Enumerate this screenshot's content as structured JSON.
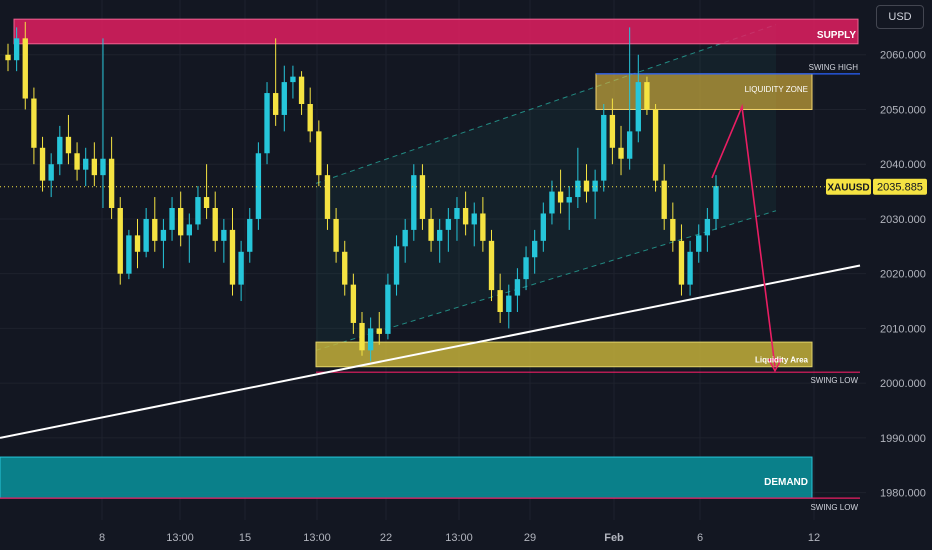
{
  "currency_button": "USD",
  "chart_data": {
    "type": "candlestick",
    "symbol": "XAUUSD",
    "last_price": 2035.885,
    "last_price_label": "2035.885",
    "ylim": [
      1975,
      2070
    ],
    "y_ticks": [
      "2060.000",
      "2050.000",
      "2040.000",
      "2030.000",
      "2020.000",
      "2010.000",
      "2000.000",
      "1990.000",
      "1980.000"
    ],
    "y_tick_values": [
      2060,
      2050,
      2040,
      2030,
      2020,
      2010,
      2000,
      1990,
      1980
    ],
    "x_ticks": [
      "8",
      "13:00",
      "15",
      "13:00",
      "22",
      "13:00",
      "29",
      "Feb",
      "6",
      "12"
    ],
    "zones": [
      {
        "label": "SUPPLY",
        "low": 2062,
        "high": 2066.5,
        "from": "start",
        "to": "axis",
        "color": "#e91e63"
      },
      {
        "label": "LIQUIDITY ZONE",
        "low": 2050,
        "high": 2056.5,
        "from": "Jan 31",
        "to": "Feb 9",
        "color": "#e2b93b"
      },
      {
        "label": "Liquidity Area",
        "low": 2003,
        "high": 2007.5,
        "from": "Jan 19",
        "to": "Feb 9",
        "color": "#c9b43a"
      },
      {
        "label": "DEMAND",
        "low": 1979,
        "high": 1986.5,
        "from": "start",
        "to": "Feb 9",
        "color": "#0a8a94"
      }
    ],
    "levels": [
      {
        "label": "SWING HIGH",
        "price": 2056.5,
        "color": "#2962ff"
      },
      {
        "label": "SWING LOW",
        "price": 2002,
        "color": "#e91e63"
      },
      {
        "label": "SWING LOW",
        "price": 1979,
        "color": "#e91e63"
      }
    ],
    "trendline": {
      "label": "",
      "from_price": 1990,
      "to_price": 2021.5,
      "color": "#ffffff"
    },
    "channel": {
      "upper_from": 2036.5,
      "upper_to": 2065.5,
      "lower_from": 2006,
      "lower_to": 2031.5
    },
    "projection": {
      "from_price": 2037.5,
      "via_price": 2050.5,
      "to_price": 2003,
      "color": "#e91e63"
    },
    "candles": [
      [
        2060,
        2062,
        2057,
        2059
      ],
      [
        2059,
        2065,
        2057,
        2063
      ],
      [
        2063,
        2066,
        2050,
        2052
      ],
      [
        2052,
        2054,
        2040,
        2043
      ],
      [
        2043,
        2045,
        2035,
        2037
      ],
      [
        2037,
        2042,
        2034,
        2040
      ],
      [
        2040,
        2047,
        2038,
        2045
      ],
      [
        2045,
        2049,
        2040,
        2042
      ],
      [
        2042,
        2044,
        2037,
        2039
      ],
      [
        2039,
        2043,
        2036,
        2041
      ],
      [
        2041,
        2044,
        2036,
        2038
      ],
      [
        2038,
        2063,
        2032,
        2041
      ],
      [
        2041,
        2045,
        2030,
        2032
      ],
      [
        2032,
        2034,
        2018,
        2020
      ],
      [
        2020,
        2028,
        2019,
        2027
      ],
      [
        2027,
        2030,
        2021,
        2024
      ],
      [
        2024,
        2032,
        2023,
        2030
      ],
      [
        2030,
        2034,
        2024,
        2026
      ],
      [
        2026,
        2030,
        2021,
        2028
      ],
      [
        2028,
        2034,
        2026,
        2032
      ],
      [
        2032,
        2035,
        2025,
        2027
      ],
      [
        2027,
        2031,
        2022,
        2029
      ],
      [
        2029,
        2036,
        2028,
        2034
      ],
      [
        2034,
        2040,
        2030,
        2032
      ],
      [
        2032,
        2035,
        2024,
        2026
      ],
      [
        2026,
        2030,
        2022,
        2028
      ],
      [
        2028,
        2032,
        2016,
        2018
      ],
      [
        2018,
        2026,
        2015,
        2024
      ],
      [
        2024,
        2032,
        2022,
        2030
      ],
      [
        2030,
        2044,
        2028,
        2042
      ],
      [
        2042,
        2055,
        2040,
        2053
      ],
      [
        2053,
        2063,
        2047,
        2049
      ],
      [
        2049,
        2058,
        2046,
        2055
      ],
      [
        2055,
        2058,
        2052,
        2056
      ],
      [
        2056,
        2057,
        2049,
        2051
      ],
      [
        2051,
        2054,
        2044,
        2046
      ],
      [
        2046,
        2048,
        2036,
        2038
      ],
      [
        2038,
        2040,
        2028,
        2030
      ],
      [
        2030,
        2032,
        2022,
        2024
      ],
      [
        2024,
        2026,
        2016,
        2018
      ],
      [
        2018,
        2020,
        2009,
        2011
      ],
      [
        2011,
        2013,
        2005,
        2006
      ],
      [
        2006,
        2012,
        2004,
        2010
      ],
      [
        2010,
        2013,
        2007,
        2009
      ],
      [
        2009,
        2020,
        2008,
        2018
      ],
      [
        2018,
        2027,
        2016,
        2025
      ],
      [
        2025,
        2030,
        2022,
        2028
      ],
      [
        2028,
        2040,
        2026,
        2038
      ],
      [
        2038,
        2040,
        2028,
        2030
      ],
      [
        2030,
        2032,
        2024,
        2026
      ],
      [
        2026,
        2030,
        2022,
        2028
      ],
      [
        2028,
        2032,
        2024,
        2030
      ],
      [
        2030,
        2034,
        2026,
        2032
      ],
      [
        2032,
        2035,
        2027,
        2029
      ],
      [
        2029,
        2033,
        2025,
        2031
      ],
      [
        2031,
        2034,
        2024,
        2026
      ],
      [
        2026,
        2028,
        2015,
        2017
      ],
      [
        2017,
        2020,
        2011,
        2013
      ],
      [
        2013,
        2018,
        2010,
        2016
      ],
      [
        2016,
        2021,
        2013,
        2019
      ],
      [
        2019,
        2025,
        2017,
        2023
      ],
      [
        2023,
        2028,
        2020,
        2026
      ],
      [
        2026,
        2033,
        2024,
        2031
      ],
      [
        2031,
        2037,
        2029,
        2035
      ],
      [
        2035,
        2039,
        2031,
        2033
      ],
      [
        2033,
        2036,
        2028,
        2034
      ],
      [
        2034,
        2043,
        2032,
        2037
      ],
      [
        2037,
        2040,
        2033,
        2035
      ],
      [
        2035,
        2039,
        2030,
        2037
      ],
      [
        2037,
        2051,
        2035,
        2049
      ],
      [
        2049,
        2052,
        2040,
        2043
      ],
      [
        2043,
        2047,
        2038,
        2041
      ],
      [
        2041,
        2065,
        2039,
        2046
      ],
      [
        2046,
        2060,
        2044,
        2055
      ],
      [
        2055,
        2056,
        2049,
        2050
      ],
      [
        2050,
        2051,
        2035,
        2037
      ],
      [
        2037,
        2040,
        2028,
        2030
      ],
      [
        2030,
        2033,
        2024,
        2026
      ],
      [
        2026,
        2029,
        2016,
        2018
      ],
      [
        2018,
        2026,
        2016,
        2024
      ],
      [
        2024,
        2029,
        2022,
        2027
      ],
      [
        2027,
        2032,
        2024,
        2030
      ],
      [
        2030,
        2038,
        2028,
        2036
      ]
    ]
  }
}
